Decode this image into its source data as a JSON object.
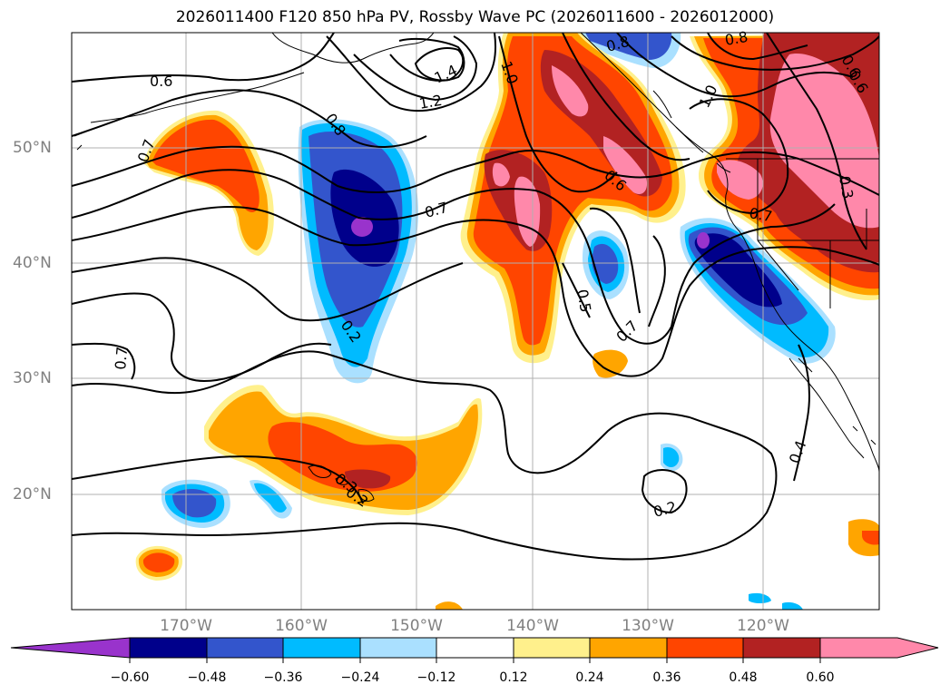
{
  "title": "2026011400 F120 850 hPa PV, Rossby Wave PC (2026011600 - 2026012000)",
  "map": {
    "lon_labels": [
      "170°W",
      "160°W",
      "150°W",
      "140°W",
      "130°W",
      "120°W"
    ],
    "lat_labels": [
      "50°N",
      "40°N",
      "30°N",
      "20°N"
    ],
    "lon_range": [
      -180,
      -110
    ],
    "lat_range": [
      10,
      60
    ],
    "grid": true,
    "contour_labels": [
      "0.6",
      "0.8",
      "1.4",
      "1.2",
      "0.8",
      "1.0",
      "1.0",
      "0.6",
      "0.7",
      "0.6",
      "0.7",
      "0.8",
      "0.7",
      "0.3",
      "0.6",
      "0.7",
      "0.5",
      "0.7",
      "0.2",
      "0.3",
      "0.2",
      "0.4",
      "0.2"
    ]
  },
  "colorbar": {
    "ticks": [
      "−0.60",
      "−0.48",
      "−0.36",
      "−0.24",
      "−0.12",
      "0.12",
      "0.24",
      "0.36",
      "0.48",
      "0.60"
    ],
    "colors": [
      "#9933cc",
      "#00008b",
      "#3355cc",
      "#00bbff",
      "#aae0ff",
      "#ffffff",
      "#fff08c",
      "#ffa500",
      "#ff4500",
      "#b22222",
      "#ff88aa"
    ]
  }
}
